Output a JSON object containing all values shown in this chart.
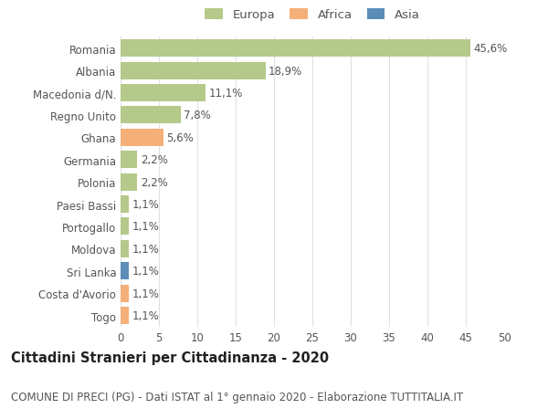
{
  "categories": [
    "Togo",
    "Costa d'Avorio",
    "Sri Lanka",
    "Moldova",
    "Portogallo",
    "Paesi Bassi",
    "Polonia",
    "Germania",
    "Ghana",
    "Regno Unito",
    "Macedonia d/N.",
    "Albania",
    "Romania"
  ],
  "values": [
    1.1,
    1.1,
    1.1,
    1.1,
    1.1,
    1.1,
    2.2,
    2.2,
    5.6,
    7.8,
    11.1,
    18.9,
    45.6
  ],
  "colors": [
    "#f5b07a",
    "#f5b07a",
    "#5b8db8",
    "#b5c98a",
    "#b5c98a",
    "#b5c98a",
    "#b5c98a",
    "#b5c98a",
    "#f5b07a",
    "#b5c98a",
    "#b5c98a",
    "#b5c98a",
    "#b5c98a"
  ],
  "labels": [
    "1,1%",
    "1,1%",
    "1,1%",
    "1,1%",
    "1,1%",
    "1,1%",
    "2,2%",
    "2,2%",
    "5,6%",
    "7,8%",
    "11,1%",
    "18,9%",
    "45,6%"
  ],
  "legend": [
    {
      "label": "Europa",
      "color": "#b5c98a"
    },
    {
      "label": "Africa",
      "color": "#f5b07a"
    },
    {
      "label": "Asia",
      "color": "#5b8db8"
    }
  ],
  "xlim": [
    0,
    50
  ],
  "xticks": [
    0,
    5,
    10,
    15,
    20,
    25,
    30,
    35,
    40,
    45,
    50
  ],
  "title": "Cittadini Stranieri per Cittadinanza - 2020",
  "subtitle": "COMUNE DI PRECI (PG) - Dati ISTAT al 1° gennaio 2020 - Elaborazione TUTTITALIA.IT",
  "background_color": "#ffffff",
  "grid_color": "#e0e0e0",
  "bar_height": 0.78,
  "label_fontsize": 8.5,
  "title_fontsize": 10.5,
  "subtitle_fontsize": 8.5,
  "ytick_fontsize": 8.5,
  "xtick_fontsize": 8.5,
  "legend_fontsize": 9.5,
  "text_color": "#555555",
  "title_color": "#222222"
}
